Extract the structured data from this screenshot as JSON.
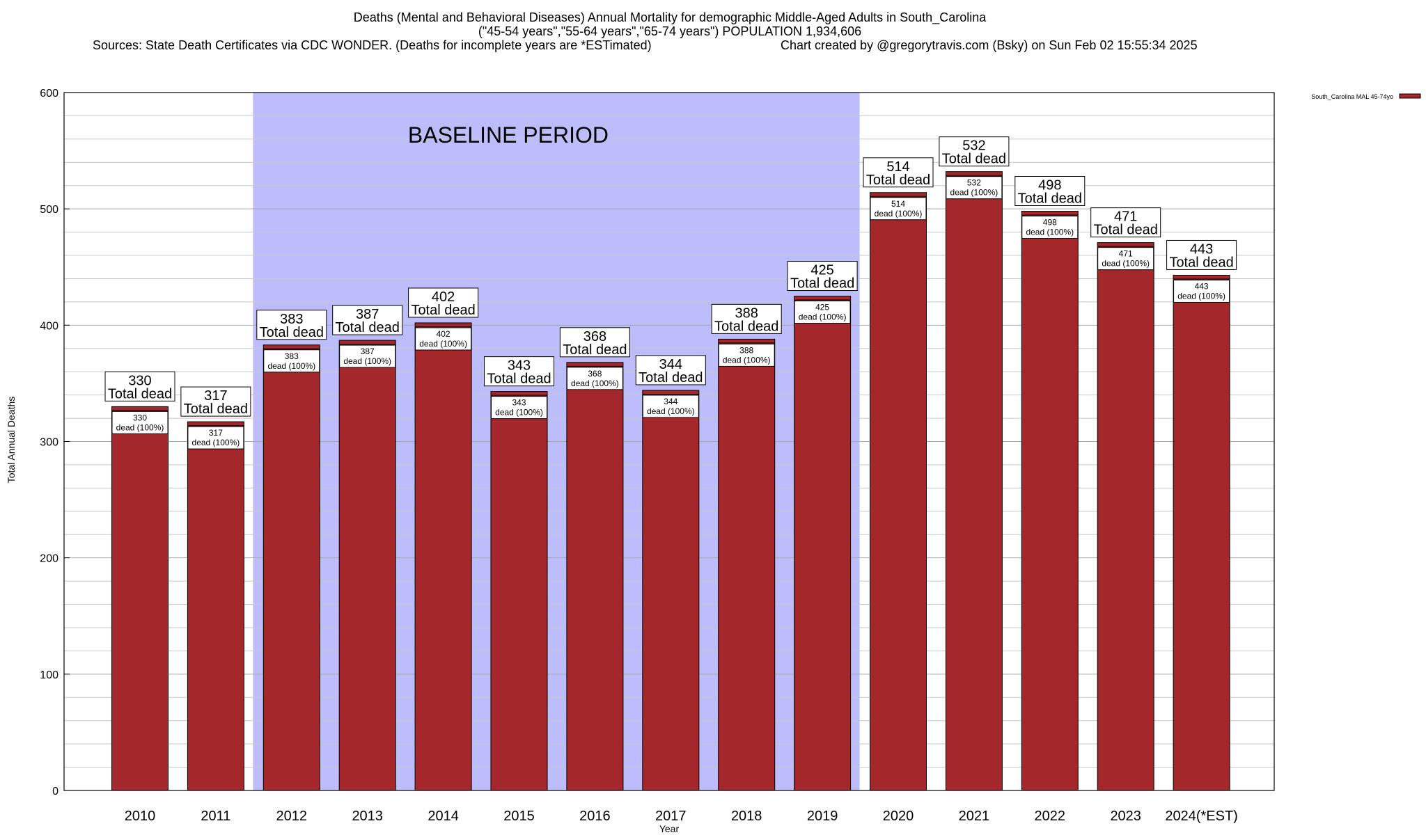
{
  "chart_data": {
    "type": "bar",
    "title_lines": [
      "Deaths (Mental and Behavioral Diseases) Annual Mortality for demographic Middle-Aged Adults in South_Carolina",
      "(\"45-54 years\",\"55-64 years\",\"65-74 years\") POPULATION 1,934,606"
    ],
    "sources_text": "Sources: State Death Certificates via CDC WONDER. (Deaths for incomplete years are *ESTimated)",
    "credit_text": "Chart created by @gregorytravis.com (Bsky) on Sun Feb 02 15:55:34 2025",
    "xlabel": "Year",
    "ylabel": "Total Annual Deaths",
    "ylim": [
      0,
      600
    ],
    "y_ticks": [
      0,
      100,
      200,
      300,
      400,
      500,
      600
    ],
    "grid": true,
    "legend_position": "top-right",
    "baseline_label": "BASELINE PERIOD",
    "baseline_range": [
      "2012",
      "2019"
    ],
    "baseline_color": "#bdbdfb",
    "bar_color": "#a4282b",
    "total_label_suffix": "Total dead",
    "pct_label_text": "dead (100%)",
    "categories": [
      "2010",
      "2011",
      "2012",
      "2013",
      "2014",
      "2015",
      "2016",
      "2017",
      "2018",
      "2019",
      "2020",
      "2021",
      "2022",
      "2023",
      "2024(*EST)"
    ],
    "series": [
      {
        "name": "South_Carolina MAL 45-74yo",
        "values": [
          330,
          317,
          383,
          387,
          402,
          343,
          368,
          344,
          388,
          425,
          514,
          532,
          498,
          471,
          443
        ]
      }
    ]
  }
}
